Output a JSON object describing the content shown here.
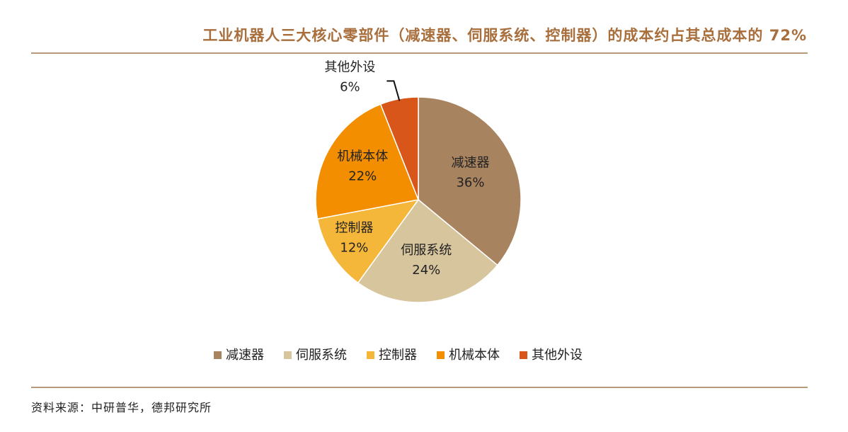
{
  "title": "工业机器人三大核心零部件（减速器、伺服系统、控制器）的成本约占其总成本的 72%",
  "source": "资料来源：中研普华，德邦研究所",
  "chart_data": {
    "type": "pie",
    "title": "工业机器人三大核心零部件（减速器、伺服系统、控制器）的成本约占其总成本的 72%",
    "slices": [
      {
        "name": "减速器",
        "value": 36,
        "label": "36%",
        "color": "#a88360"
      },
      {
        "name": "伺服系统",
        "value": 24,
        "label": "24%",
        "color": "#d7c59e"
      },
      {
        "name": "控制器",
        "value": 12,
        "label": "12%",
        "color": "#f5b73a"
      },
      {
        "name": "机械本体",
        "value": 22,
        "label": "22%",
        "color": "#f28e00"
      },
      {
        "name": "其他外设",
        "value": 6,
        "label": "6%",
        "color": "#d8561a"
      }
    ],
    "start": "12 o'clock",
    "direction": "clockwise",
    "legend_position": "bottom"
  }
}
